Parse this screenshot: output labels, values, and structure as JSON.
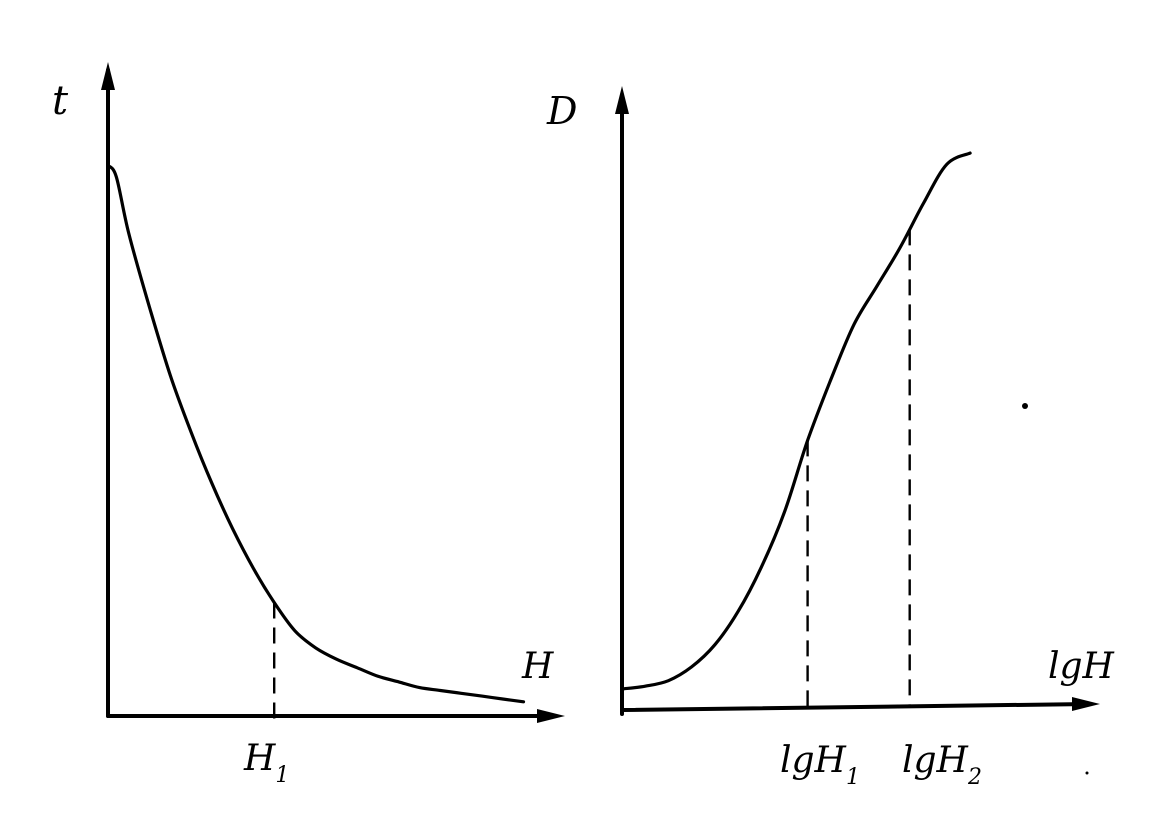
{
  "chart_data": [
    {
      "type": "line",
      "xlabel": "H",
      "ylabel": "t",
      "marker_labels": [
        {
          "text": "H",
          "sub": "1",
          "x": 0.4
        }
      ],
      "series": [
        {
          "x": [
            0.0,
            0.02,
            0.05,
            0.1,
            0.15,
            0.2,
            0.25,
            0.3,
            0.35,
            0.4,
            0.45,
            0.5,
            0.55,
            0.6,
            0.65,
            0.7,
            0.75,
            0.8,
            0.85,
            0.9,
            0.95,
            1.0
          ],
          "values": [
            0.97,
            0.95,
            0.85,
            0.72,
            0.6,
            0.5,
            0.41,
            0.33,
            0.26,
            0.2,
            0.15,
            0.12,
            0.1,
            0.085,
            0.07,
            0.06,
            0.05,
            0.045,
            0.04,
            0.035,
            0.03,
            0.025
          ]
        }
      ],
      "xlim": [
        0,
        1.1
      ],
      "ylim": [
        0,
        1.05
      ],
      "colors": {
        "line": "#000000"
      }
    },
    {
      "type": "line",
      "xlabel": "lgH",
      "ylabel": "D",
      "marker_labels": [
        {
          "text": "lgH",
          "sub": "1",
          "x": 0.4
        },
        {
          "text": "lgH",
          "sub": "2",
          "x": 0.62
        }
      ],
      "series": [
        {
          "x": [
            0.0,
            0.05,
            0.1,
            0.15,
            0.2,
            0.25,
            0.3,
            0.35,
            0.4,
            0.45,
            0.5,
            0.55,
            0.6,
            0.65,
            0.7,
            0.75
          ],
          "values": [
            0.02,
            0.025,
            0.035,
            0.06,
            0.1,
            0.16,
            0.24,
            0.34,
            0.47,
            0.58,
            0.68,
            0.75,
            0.82,
            0.9,
            0.97,
            0.99
          ]
        }
      ],
      "xlim": [
        0,
        1.03
      ],
      "ylim": [
        0,
        1.05
      ],
      "colors": {
        "line": "#000000"
      }
    }
  ]
}
